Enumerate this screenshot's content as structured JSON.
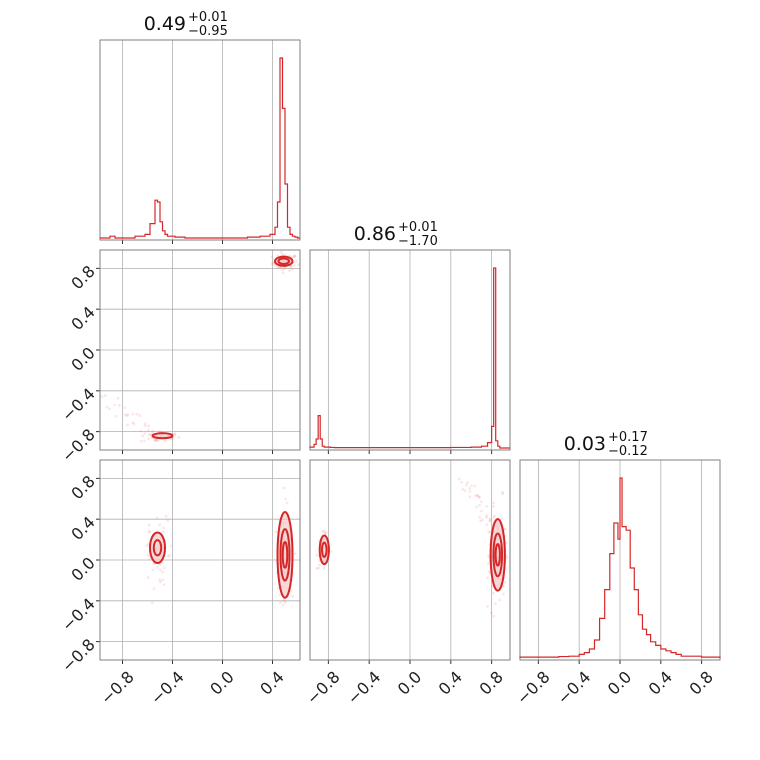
{
  "chart_data": {
    "type": "corner",
    "color": "#d62728",
    "fill_color": "#f4c9ca",
    "scatter_color": "#e87a7b",
    "ticks": {
      "values": [
        -0.8,
        -0.4,
        0.0,
        0.4,
        0.8
      ],
      "labels": [
        "−0.8",
        "−0.4",
        "0.0",
        "0.4",
        "0.8"
      ]
    },
    "titles": [
      {
        "main": "0.49",
        "plus": "+0.01",
        "minus": "−0.95"
      },
      {
        "main": "0.86",
        "plus": "+0.01",
        "minus": "−1.70"
      },
      {
        "main": "0.03",
        "plus": "+0.17",
        "minus": "−0.12"
      }
    ],
    "ranges": [
      [
        -0.98,
        0.62
      ],
      [
        -0.98,
        0.98
      ],
      [
        -0.98,
        0.98
      ]
    ],
    "histograms": [
      {
        "bins": [
          -0.98,
          -0.94,
          -0.9,
          -0.86,
          -0.82,
          -0.78,
          -0.74,
          -0.7,
          -0.66,
          -0.62,
          -0.58,
          -0.54,
          -0.52,
          -0.5,
          -0.48,
          -0.46,
          -0.44,
          -0.42,
          -0.38,
          -0.34,
          -0.3,
          -0.2,
          0.0,
          0.2,
          0.3,
          0.38,
          0.42,
          0.44,
          0.46,
          0.48,
          0.5,
          0.52,
          0.54,
          0.56,
          0.58,
          0.6,
          0.62
        ],
        "counts": [
          0,
          0,
          0.01,
          0,
          0,
          0,
          0,
          0.01,
          0.01,
          0.02,
          0.08,
          0.21,
          0.2,
          0.09,
          0.04,
          0.02,
          0.01,
          0.01,
          0.005,
          0.005,
          0,
          0,
          0,
          0.005,
          0.01,
          0.02,
          0.06,
          0.2,
          1.0,
          0.72,
          0.3,
          0.06,
          0.02,
          0.01,
          0.005,
          0
        ]
      },
      {
        "bins": [
          -0.98,
          -0.94,
          -0.92,
          -0.9,
          -0.88,
          -0.86,
          -0.84,
          -0.82,
          -0.78,
          -0.74,
          -0.7,
          -0.6,
          -0.4,
          0.0,
          0.4,
          0.6,
          0.7,
          0.76,
          0.8,
          0.82,
          0.84,
          0.86,
          0.88,
          0.9,
          0.92,
          0.94,
          0.98
        ],
        "counts": [
          0.005,
          0.02,
          0.05,
          0.18,
          0.05,
          0.01,
          0.005,
          0.005,
          0.003,
          0.002,
          0.002,
          0.002,
          0.002,
          0.002,
          0.003,
          0.005,
          0.01,
          0.03,
          0.12,
          1.0,
          0.04,
          0.01,
          0,
          0,
          0,
          0
        ]
      },
      {
        "bins": [
          -0.98,
          -0.9,
          -0.8,
          -0.7,
          -0.6,
          -0.5,
          -0.4,
          -0.35,
          -0.3,
          -0.25,
          -0.2,
          -0.15,
          -0.1,
          -0.06,
          -0.02,
          0.0,
          0.02,
          0.06,
          0.1,
          0.14,
          0.18,
          0.22,
          0.26,
          0.3,
          0.35,
          0.4,
          0.45,
          0.5,
          0.55,
          0.6,
          0.7,
          0.8,
          0.9,
          0.98
        ],
        "counts": [
          0.005,
          0.005,
          0.005,
          0.005,
          0.008,
          0.01,
          0.02,
          0.03,
          0.05,
          0.1,
          0.22,
          0.38,
          0.58,
          0.75,
          0.66,
          1.0,
          0.73,
          0.71,
          0.5,
          0.38,
          0.24,
          0.16,
          0.13,
          0.09,
          0.07,
          0.05,
          0.04,
          0.03,
          0.02,
          0.01,
          0.01,
          0.005,
          0.005
        ]
      }
    ],
    "scatter_panels": [
      {
        "row": 1,
        "col": 0,
        "clusters": [
          {
            "cx": 0.5,
            "cy": 0.86,
            "sx": 0.05,
            "sy": 0.04,
            "n": 80
          },
          {
            "cx": -0.5,
            "cy": -0.85,
            "sx": 0.08,
            "sy": 0.03,
            "n": 40
          }
        ],
        "arc": {
          "x0": -0.95,
          "y0": -0.45,
          "x1": -0.55,
          "y1": -0.85,
          "n": 25
        },
        "contours": [
          {
            "cx": 0.49,
            "cy": 0.87,
            "rx": 0.07,
            "ry": 0.045,
            "levels": [
              1.0,
              0.6
            ]
          },
          {
            "cx": -0.48,
            "cy": -0.84,
            "rx": 0.08,
            "ry": 0.025,
            "levels": [
              1.0
            ]
          }
        ]
      },
      {
        "row": 2,
        "col": 0,
        "clusters": [
          {
            "cx": 0.5,
            "cy": 0.02,
            "sx": 0.03,
            "sy": 0.18,
            "n": 120
          },
          {
            "cx": -0.52,
            "cy": 0.08,
            "sx": 0.04,
            "sy": 0.15,
            "n": 60
          }
        ],
        "arc": null,
        "contours": [
          {
            "cx": 0.5,
            "cy": 0.05,
            "rx": 0.06,
            "ry": 0.42,
            "levels": [
              1.0,
              0.6,
              0.3
            ]
          },
          {
            "cx": -0.52,
            "cy": 0.12,
            "rx": 0.06,
            "ry": 0.15,
            "levels": [
              1.0,
              0.5
            ]
          }
        ]
      },
      {
        "row": 2,
        "col": 1,
        "clusters": [
          {
            "cx": 0.85,
            "cy": 0.05,
            "sx": 0.05,
            "sy": 0.2,
            "n": 120
          },
          {
            "cx": -0.85,
            "cy": 0.1,
            "sx": 0.03,
            "sy": 0.1,
            "n": 50
          }
        ],
        "arc": {
          "x0": 0.55,
          "y0": 0.75,
          "x1": 0.85,
          "y1": 0.2,
          "n": 40
        },
        "contours": [
          {
            "cx": 0.86,
            "cy": 0.05,
            "rx": 0.07,
            "ry": 0.35,
            "levels": [
              1.0,
              0.6,
              0.3
            ]
          },
          {
            "cx": -0.84,
            "cy": 0.1,
            "rx": 0.045,
            "ry": 0.14,
            "levels": [
              1.0,
              0.5
            ]
          }
        ]
      }
    ]
  }
}
